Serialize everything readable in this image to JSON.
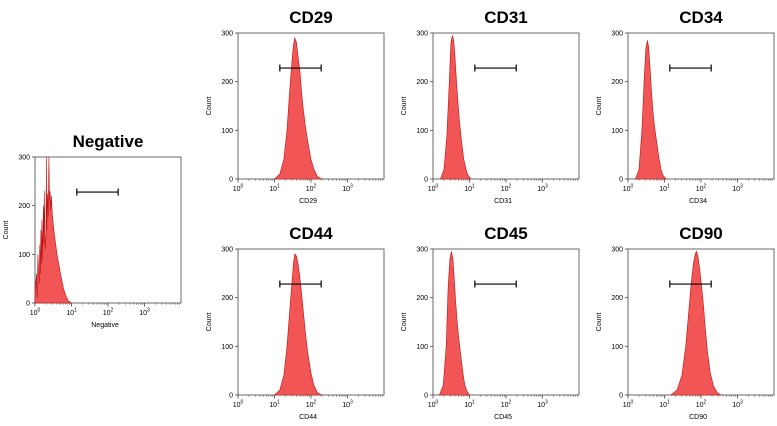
{
  "chart_data": [
    {
      "type": "area",
      "title": "Negative",
      "xlabel": "Negative",
      "ylabel": "Count",
      "xscale": "log",
      "xlim": [
        1,
        10000
      ],
      "ylim": [
        0,
        300
      ],
      "yticks": [
        0,
        100,
        200,
        300
      ],
      "xticks": [
        {
          "base": "10",
          "exp": "0"
        },
        {
          "base": "10",
          "exp": "1"
        },
        {
          "base": "10",
          "exp": "2"
        },
        {
          "base": "10",
          "exp": "3"
        }
      ],
      "fill_color": "#f25555",
      "stroke_color": "#c01010",
      "marker": {
        "x_range": [
          14,
          190
        ],
        "y": 228
      },
      "x": [
        1,
        1.1,
        1.15,
        1.2,
        1.3,
        1.35,
        1.4,
        1.45,
        1.5,
        1.55,
        1.6,
        1.7,
        1.75,
        1.8,
        1.9,
        2.0,
        2.05,
        2.1,
        2.2,
        2.3,
        2.4,
        2.5,
        2.6,
        2.7,
        2.8,
        3.0,
        3.2,
        3.4,
        3.7,
        4.0,
        4.5,
        5.0,
        5.5,
        6.0,
        7.0,
        8.0,
        10
      ],
      "y": [
        20,
        60,
        10,
        100,
        40,
        120,
        60,
        150,
        80,
        170,
        90,
        200,
        120,
        230,
        110,
        140,
        300,
        150,
        225,
        180,
        300,
        210,
        230,
        190,
        220,
        180,
        160,
        140,
        120,
        100,
        80,
        60,
        45,
        30,
        15,
        5,
        0
      ]
    },
    {
      "type": "area",
      "title": "CD29",
      "xlabel": "CD29",
      "ylabel": "Count",
      "xscale": "log",
      "xlim": [
        1,
        10000
      ],
      "ylim": [
        0,
        300
      ],
      "yticks": [
        0,
        100,
        200,
        300
      ],
      "xticks": [
        {
          "base": "10",
          "exp": "0"
        },
        {
          "base": "10",
          "exp": "1"
        },
        {
          "base": "10",
          "exp": "2"
        },
        {
          "base": "10",
          "exp": "3"
        }
      ],
      "fill_color": "#f25555",
      "stroke_color": "#c01010",
      "marker": {
        "x_range": [
          14,
          190
        ],
        "y": 228
      },
      "x": [
        10,
        14,
        18,
        22,
        26,
        30,
        33,
        36,
        38,
        40,
        43,
        46,
        50,
        55,
        60,
        70,
        80,
        100,
        120,
        150,
        200
      ],
      "y": [
        0,
        10,
        40,
        100,
        180,
        240,
        275,
        290,
        285,
        280,
        260,
        240,
        220,
        180,
        150,
        110,
        80,
        40,
        20,
        5,
        0
      ]
    },
    {
      "type": "area",
      "title": "CD31",
      "xlabel": "CD31",
      "ylabel": "Count",
      "xscale": "log",
      "xlim": [
        1,
        10000
      ],
      "ylim": [
        0,
        300
      ],
      "yticks": [
        0,
        100,
        200,
        300
      ],
      "xticks": [
        {
          "base": "10",
          "exp": "0"
        },
        {
          "base": "10",
          "exp": "1"
        },
        {
          "base": "10",
          "exp": "2"
        },
        {
          "base": "10",
          "exp": "3"
        }
      ],
      "fill_color": "#f25555",
      "stroke_color": "#c01010",
      "marker": {
        "x_range": [
          14,
          190
        ],
        "y": 228
      },
      "x": [
        1.6,
        2.0,
        2.4,
        2.8,
        3.1,
        3.4,
        3.7,
        4.0,
        4.4,
        4.8,
        5.3,
        6.0,
        7.0,
        8.0,
        9.0,
        11
      ],
      "y": [
        0,
        20,
        90,
        200,
        280,
        295,
        285,
        250,
        200,
        160,
        120,
        80,
        40,
        20,
        8,
        0
      ]
    },
    {
      "type": "area",
      "title": "CD34",
      "xlabel": "CD34",
      "ylabel": "Count",
      "xscale": "log",
      "xlim": [
        1,
        10000
      ],
      "ylim": [
        0,
        300
      ],
      "yticks": [
        0,
        100,
        200,
        300
      ],
      "xticks": [
        {
          "base": "10",
          "exp": "0"
        },
        {
          "base": "10",
          "exp": "1"
        },
        {
          "base": "10",
          "exp": "2"
        },
        {
          "base": "10",
          "exp": "3"
        }
      ],
      "fill_color": "#f25555",
      "stroke_color": "#c01010",
      "marker": {
        "x_range": [
          14,
          190
        ],
        "y": 228
      },
      "x": [
        1.6,
        2.0,
        2.4,
        2.8,
        3.1,
        3.4,
        3.7,
        4.0,
        4.4,
        4.8,
        5.3,
        6.0,
        7.0,
        8.0,
        9.0,
        11
      ],
      "y": [
        0,
        20,
        100,
        210,
        270,
        285,
        270,
        230,
        180,
        140,
        110,
        80,
        45,
        20,
        8,
        0
      ]
    },
    {
      "type": "area",
      "title": "CD44",
      "xlabel": "CD44",
      "ylabel": "Count",
      "xscale": "log",
      "xlim": [
        1,
        10000
      ],
      "ylim": [
        0,
        300
      ],
      "yticks": [
        0,
        100,
        200,
        300
      ],
      "xticks": [
        {
          "base": "10",
          "exp": "0"
        },
        {
          "base": "10",
          "exp": "1"
        },
        {
          "base": "10",
          "exp": "2"
        },
        {
          "base": "10",
          "exp": "3"
        }
      ],
      "fill_color": "#f25555",
      "stroke_color": "#c01010",
      "marker": {
        "x_range": [
          14,
          190
        ],
        "y": 228
      },
      "x": [
        10,
        14,
        18,
        22,
        26,
        30,
        33,
        36,
        40,
        44,
        48,
        55,
        62,
        70,
        80,
        100,
        120,
        150,
        200
      ],
      "y": [
        0,
        10,
        40,
        100,
        170,
        230,
        270,
        290,
        285,
        270,
        250,
        210,
        170,
        130,
        90,
        45,
        20,
        5,
        0
      ]
    },
    {
      "type": "area",
      "title": "CD45",
      "xlabel": "CD45",
      "ylabel": "Count",
      "xscale": "log",
      "xlim": [
        1,
        10000
      ],
      "ylim": [
        0,
        300
      ],
      "yticks": [
        0,
        100,
        200,
        300
      ],
      "xticks": [
        {
          "base": "10",
          "exp": "0"
        },
        {
          "base": "10",
          "exp": "1"
        },
        {
          "base": "10",
          "exp": "2"
        },
        {
          "base": "10",
          "exp": "3"
        }
      ],
      "fill_color": "#f25555",
      "stroke_color": "#c01010",
      "marker": {
        "x_range": [
          14,
          190
        ],
        "y": 228
      },
      "x": [
        1.5,
        1.9,
        2.3,
        2.6,
        2.9,
        3.2,
        3.5,
        3.8,
        4.2,
        4.6,
        5.1,
        5.8,
        6.6,
        7.5,
        8.5,
        10
      ],
      "y": [
        0,
        20,
        100,
        220,
        280,
        295,
        280,
        240,
        190,
        150,
        115,
        80,
        45,
        20,
        8,
        0
      ]
    },
    {
      "type": "area",
      "title": "CD90",
      "xlabel": "CD90",
      "ylabel": "Count",
      "xscale": "log",
      "xlim": [
        1,
        10000
      ],
      "ylim": [
        0,
        300
      ],
      "yticks": [
        0,
        100,
        200,
        300
      ],
      "xticks": [
        {
          "base": "10",
          "exp": "0"
        },
        {
          "base": "10",
          "exp": "1"
        },
        {
          "base": "10",
          "exp": "2"
        },
        {
          "base": "10",
          "exp": "3"
        }
      ],
      "fill_color": "#f25555",
      "stroke_color": "#c01010",
      "marker": {
        "x_range": [
          14,
          190
        ],
        "y": 228
      },
      "x": [
        15,
        22,
        30,
        38,
        46,
        54,
        62,
        70,
        76,
        82,
        90,
        100,
        115,
        130,
        150,
        180,
        220,
        280,
        350
      ],
      "y": [
        0,
        10,
        40,
        100,
        170,
        230,
        270,
        290,
        295,
        285,
        265,
        235,
        190,
        140,
        90,
        45,
        18,
        5,
        0
      ]
    }
  ]
}
